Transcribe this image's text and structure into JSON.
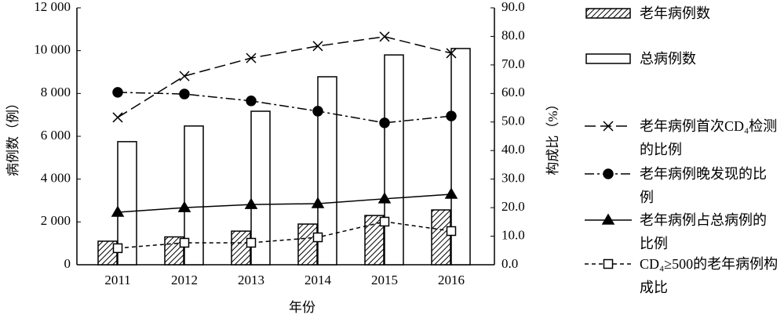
{
  "chart_data": {
    "type": "bar",
    "x_label": "年份",
    "y_label": "病例数（例）",
    "y2_label": "构成比（%）",
    "categories": [
      "2011",
      "2012",
      "2013",
      "2014",
      "2015",
      "2016"
    ],
    "ylim": [
      0,
      12000
    ],
    "yticks": [
      0,
      {
        "value": 2000,
        "label": "2 000"
      },
      {
        "value": 4000,
        "label": "4 000"
      },
      {
        "value": 6000,
        "label": "6 000"
      },
      {
        "value": 8000,
        "label": "8 000"
      },
      {
        "value": 10000,
        "label": "10 000"
      },
      {
        "value": 12000,
        "label": "12 000"
      }
    ],
    "y2lim": [
      0,
      90
    ],
    "y2ticks": [
      {
        "value": 0,
        "label": "0.0"
      },
      {
        "value": 10,
        "label": "10.0"
      },
      {
        "value": 20,
        "label": "20.0"
      },
      {
        "value": 30,
        "label": "30.0"
      },
      {
        "value": 40,
        "label": "40.0"
      },
      {
        "value": 50,
        "label": "50.0"
      },
      {
        "value": 60,
        "label": "60.0"
      },
      {
        "value": 70,
        "label": "70.0"
      },
      {
        "value": 80,
        "label": "80.0"
      },
      {
        "value": 90,
        "label": "90.0"
      }
    ],
    "series": [
      {
        "name": "老年病例数",
        "type": "bar",
        "color": "#000000",
        "pattern": "hatched",
        "values": [
          1100,
          1300,
          1570,
          1900,
          2300,
          2560
        ]
      },
      {
        "name": "总病例数",
        "type": "bar",
        "color": "#000000",
        "pattern": "none",
        "values": [
          5750,
          6480,
          7170,
          8780,
          9800,
          10100
        ]
      },
      {
        "name": "老年病例首次CD₄检测的比例",
        "type": "line",
        "axis": "y2",
        "color": "#000000",
        "marker": "x",
        "line_style": "long-dash",
        "values": [
          51.6,
          66.1,
          72.4,
          76.6,
          79.9,
          74.1
        ]
      },
      {
        "name": "老年病例晚发现的比例",
        "type": "line",
        "axis": "y2",
        "color": "#000000",
        "marker": "circle",
        "line_style": "dash-dot",
        "values": [
          60.4,
          59.8,
          57.4,
          53.8,
          49.7,
          52.1
        ]
      },
      {
        "name": "老年病例占总病例的比例",
        "type": "line",
        "axis": "y2",
        "color": "#000000",
        "marker": "triangle",
        "line_style": "solid",
        "values": [
          18.4,
          20.0,
          21.1,
          21.4,
          23.1,
          24.7
        ]
      },
      {
        "name": "CD₄≥500的老年病例构成比",
        "type": "line",
        "axis": "y2",
        "color": "#000000",
        "marker": "square",
        "line_style": "short-dash",
        "values": [
          5.8,
          7.7,
          7.7,
          9.6,
          15.1,
          11.8
        ]
      }
    ]
  }
}
